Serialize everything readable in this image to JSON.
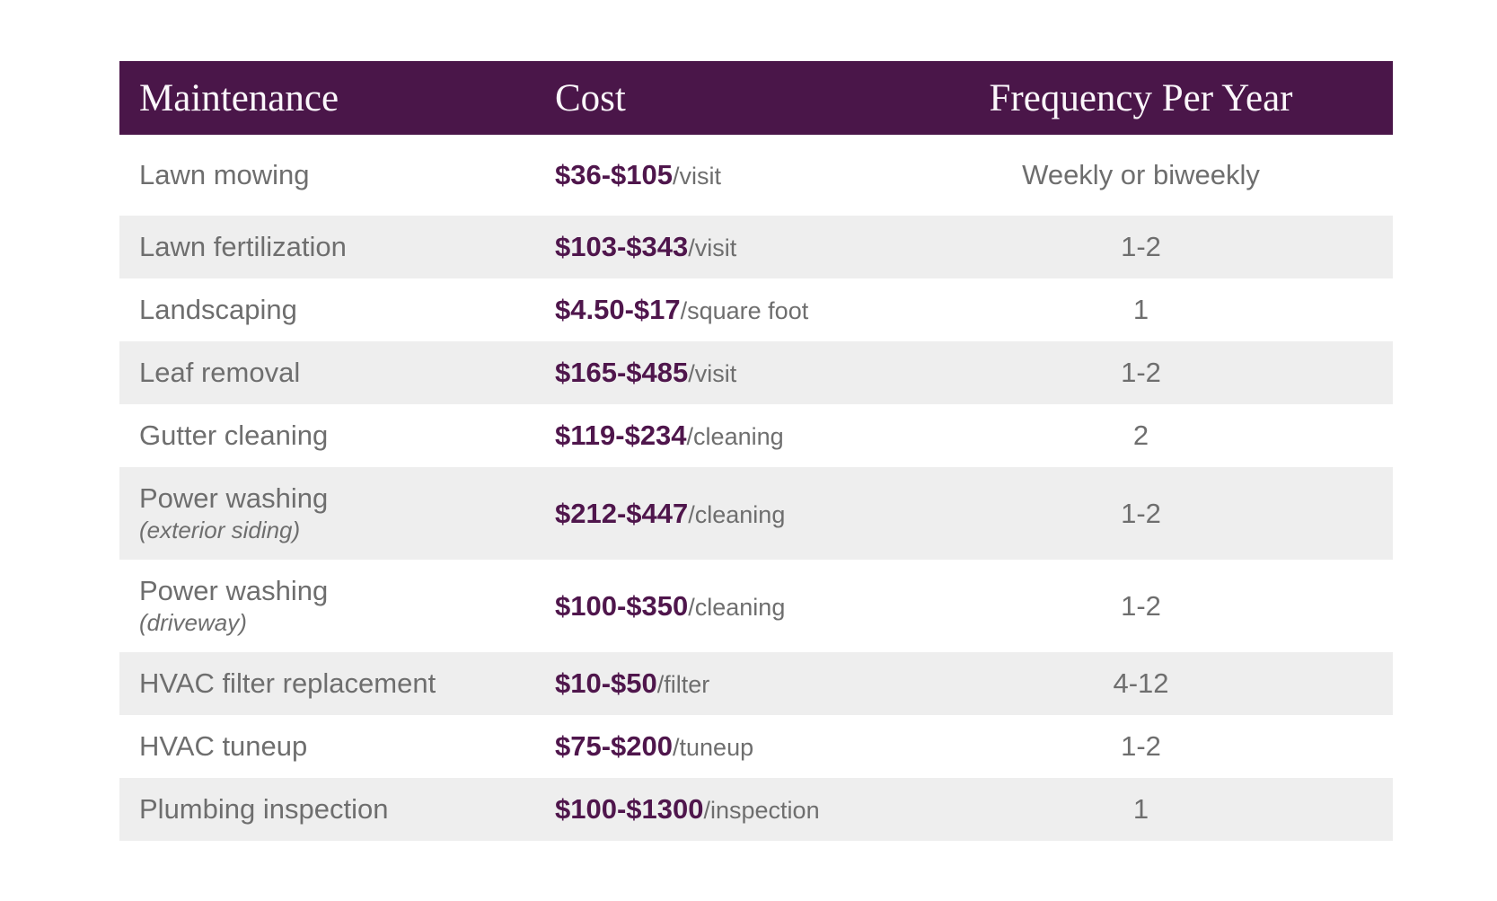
{
  "chart_data": {
    "type": "table",
    "columns": [
      "Maintenance",
      "Cost",
      "Frequency Per Year"
    ],
    "rows": [
      {
        "maintenance": "Lawn mowing",
        "maintenance_note": "",
        "cost_range": "$36-$105",
        "cost_unit": "/visit",
        "frequency": "Weekly or biweekly"
      },
      {
        "maintenance": "Lawn fertilization",
        "maintenance_note": "",
        "cost_range": "$103-$343",
        "cost_unit": "/visit",
        "frequency": "1-2"
      },
      {
        "maintenance": "Landscaping",
        "maintenance_note": "",
        "cost_range": "$4.50-$17",
        "cost_unit": "/square foot",
        "frequency": "1"
      },
      {
        "maintenance": "Leaf removal",
        "maintenance_note": "",
        "cost_range": "$165-$485",
        "cost_unit": "/visit",
        "frequency": "1-2"
      },
      {
        "maintenance": "Gutter cleaning",
        "maintenance_note": "",
        "cost_range": "$119-$234",
        "cost_unit": "/cleaning",
        "frequency": "2"
      },
      {
        "maintenance": "Power washing",
        "maintenance_note": "(exterior siding)",
        "cost_range": "$212-$447",
        "cost_unit": "/cleaning",
        "frequency": "1-2"
      },
      {
        "maintenance": "Power washing",
        "maintenance_note": "(driveway)",
        "cost_range": "$100-$350",
        "cost_unit": "/cleaning",
        "frequency": "1-2"
      },
      {
        "maintenance": "HVAC filter replacement",
        "maintenance_note": "",
        "cost_range": "$10-$50",
        "cost_unit": "/filter",
        "frequency": "4-12"
      },
      {
        "maintenance": "HVAC tuneup",
        "maintenance_note": "",
        "cost_range": "$75-$200",
        "cost_unit": "/tuneup",
        "frequency": "1-2"
      },
      {
        "maintenance": "Plumbing inspection",
        "maintenance_note": "",
        "cost_range": "$100-$1300",
        "cost_unit": "/inspection",
        "frequency": "1"
      }
    ],
    "layout": {
      "header_bg_color": "#4a1649",
      "header_text_color": "#fbf7fb",
      "alt_row_bg_color": "#eeeeee",
      "body_text_color": "#6e6e6e",
      "price_text_color": "#4f164c",
      "row_striping": "alternating white and light gray, starting white",
      "frequency_column_alignment": "center"
    }
  }
}
